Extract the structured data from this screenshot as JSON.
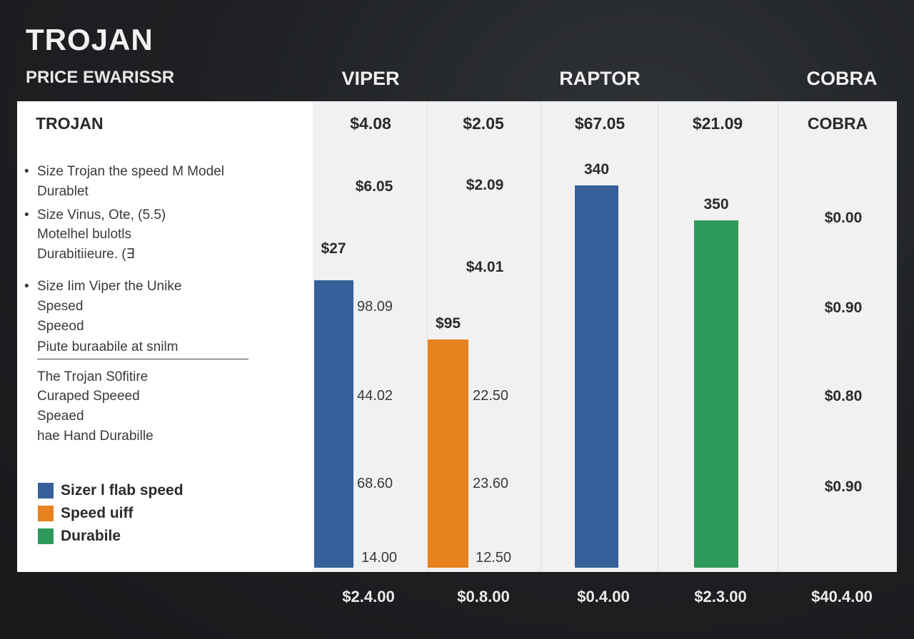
{
  "header": {
    "title": "TROJAN",
    "subtitle": "PRICE EWARISSR",
    "columns": [
      "VIPER",
      "RAPTOR",
      "COBRA"
    ]
  },
  "panel": {
    "title": "TROJAN",
    "price_heads": [
      "$4.08",
      "$2.05",
      "$67.05",
      "$21.09",
      "COBRA"
    ],
    "notes": [
      {
        "bullet": "•",
        "text": "Size Trojan the speed M Model"
      },
      {
        "bullet": "",
        "text": "Durablet"
      },
      {
        "bullet": "•",
        "text": "Size Vinus,  Ote, (5.5)"
      },
      {
        "bullet": "",
        "text": "Motelhel bulotls"
      },
      {
        "bullet": "",
        "text": "Durabitiieure. (∃"
      },
      {
        "bullet": "•",
        "text": "Size Iim Viper the Unike"
      },
      {
        "bullet": "",
        "text": "Spesed"
      },
      {
        "bullet": "",
        "text": "Speeod"
      },
      {
        "bullet": "",
        "text": "Piute buraabile at snilm"
      }
    ],
    "notes_lower": [
      "The Trojan S0fitire",
      "Curaped Speeed",
      "Speaed",
      "hae Hand Durabille"
    ],
    "legend": [
      {
        "label": "Sizer l flab speed",
        "color": "#36609a"
      },
      {
        "label": "Speed uiff",
        "color": "#e8821f"
      },
      {
        "label": "Durabile",
        "color": "#2e9a5a"
      }
    ]
  },
  "chart_data": {
    "type": "bar",
    "categories": [
      "VIPER",
      "",
      "RAPTOR",
      "",
      "COBRA"
    ],
    "series": [
      {
        "values": [
          27,
          null,
          null,
          null,
          null
        ],
        "color": "#36609a"
      },
      {
        "values": [
          null,
          95,
          null,
          null,
          null
        ],
        "color": "#e8821f"
      },
      {
        "values": [
          null,
          null,
          340,
          null,
          null
        ],
        "color": "#36609a"
      },
      {
        "values": [
          null,
          null,
          null,
          350,
          null
        ],
        "color": "#2e9a5a"
      }
    ],
    "bar_labels": [
      "$27",
      "$95",
      "340",
      "350"
    ],
    "ylim": [
      0,
      420
    ],
    "value_labels": [
      {
        "text": "$6.05",
        "col": 0
      },
      {
        "text": "$2.09",
        "col": 1
      },
      {
        "text": "$4.01",
        "col": 1
      }
    ],
    "axis_ticks_a": [
      "98.09",
      "44.02",
      "68.60",
      "14.00"
    ],
    "axis_ticks_b": [
      "22.50",
      "23.60",
      "12.50"
    ],
    "right_values": [
      "$0.00",
      "$0.90",
      "$0.80",
      "$0.90"
    ],
    "bottom_prices": [
      "$2.4.00",
      "$0.8.00",
      "$0.4.00",
      "$2.3.00",
      "$40.4.00"
    ]
  }
}
